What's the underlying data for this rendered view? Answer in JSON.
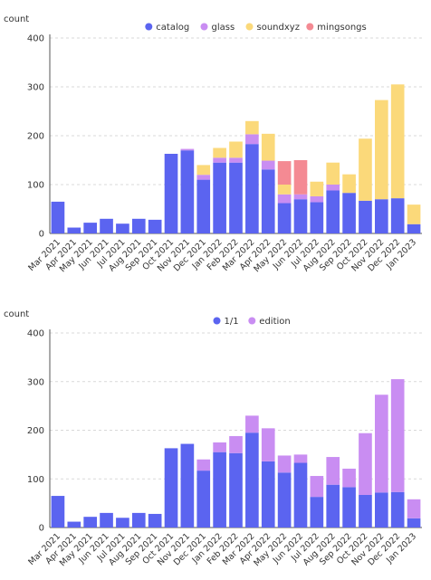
{
  "colors": {
    "catalog": "#5b64f0",
    "glass": "#c98df2",
    "soundxyz": "#fbd97a",
    "mingsongs": "#f48a93",
    "one_of_one": "#5b64f0",
    "edition": "#c98df2",
    "grid": "#d9d9d9",
    "axis": "#555555",
    "text": "#333333"
  },
  "chart_data": [
    {
      "type": "bar",
      "stacked": true,
      "ylabel": "count",
      "ylim": [
        0,
        400
      ],
      "yticks": [
        0,
        100,
        200,
        300,
        400
      ],
      "grid": "horizontal",
      "legend_position": "top",
      "categories": [
        "Mar 2021",
        "Apr 2021",
        "May 2021",
        "Jun 2021",
        "Jul 2021",
        "Aug 2021",
        "Sep 2021",
        "Oct 2021",
        "Nov 2021",
        "Dec 2021",
        "Jan 2022",
        "Feb 2022",
        "Mar 2022",
        "Apr 2022",
        "May 2022",
        "Jun 2022",
        "Jul 2022",
        "Aug 2022",
        "Sep 2022",
        "Oct 2022",
        "Nov 2022",
        "Dec 2022",
        "Jan 2023"
      ],
      "series": [
        {
          "name": "catalog",
          "color_key": "catalog",
          "values": [
            65,
            12,
            22,
            30,
            20,
            30,
            28,
            163,
            170,
            110,
            145,
            145,
            183,
            131,
            62,
            70,
            64,
            88,
            83,
            67,
            70,
            72,
            19
          ]
        },
        {
          "name": "glass",
          "color_key": "glass",
          "values": [
            0,
            0,
            0,
            0,
            0,
            0,
            0,
            0,
            3,
            10,
            10,
            10,
            20,
            18,
            18,
            10,
            12,
            12,
            0,
            0,
            0,
            0,
            0
          ]
        },
        {
          "name": "soundxyz",
          "color_key": "soundxyz",
          "values": [
            0,
            0,
            0,
            0,
            0,
            0,
            0,
            0,
            0,
            20,
            20,
            33,
            27,
            55,
            20,
            0,
            30,
            45,
            38,
            127,
            203,
            233,
            40
          ]
        },
        {
          "name": "mingsongs",
          "color_key": "mingsongs",
          "values": [
            0,
            0,
            0,
            0,
            0,
            0,
            0,
            0,
            0,
            0,
            0,
            0,
            0,
            0,
            48,
            70,
            0,
            0,
            0,
            0,
            0,
            0,
            0
          ]
        }
      ]
    },
    {
      "type": "bar",
      "stacked": true,
      "ylabel": "count",
      "ylim": [
        0,
        400
      ],
      "yticks": [
        0,
        100,
        200,
        300,
        400
      ],
      "grid": "horizontal",
      "legend_position": "top",
      "categories": [
        "Mar 2021",
        "Apr 2021",
        "May 2021",
        "Jun 2021",
        "Jul 2021",
        "Aug 2021",
        "Sep 2021",
        "Oct 2021",
        "Nov 2021",
        "Dec 2021",
        "Jan 2022",
        "Feb 2022",
        "Mar 2022",
        "Apr 2022",
        "May 2022",
        "Jun 2022",
        "Jul 2022",
        "Aug 2022",
        "Sep 2022",
        "Oct 2022",
        "Nov 2022",
        "Dec 2022",
        "Jan 2023"
      ],
      "series": [
        {
          "name": "1/1",
          "color_key": "one_of_one",
          "values": [
            65,
            12,
            22,
            30,
            20,
            30,
            28,
            163,
            172,
            117,
            155,
            153,
            195,
            136,
            113,
            133,
            63,
            88,
            83,
            67,
            72,
            73,
            19
          ]
        },
        {
          "name": "edition",
          "color_key": "edition",
          "values": [
            0,
            0,
            0,
            0,
            0,
            0,
            0,
            0,
            0,
            23,
            20,
            35,
            35,
            68,
            35,
            17,
            43,
            57,
            38,
            127,
            201,
            232,
            39
          ]
        }
      ]
    }
  ]
}
